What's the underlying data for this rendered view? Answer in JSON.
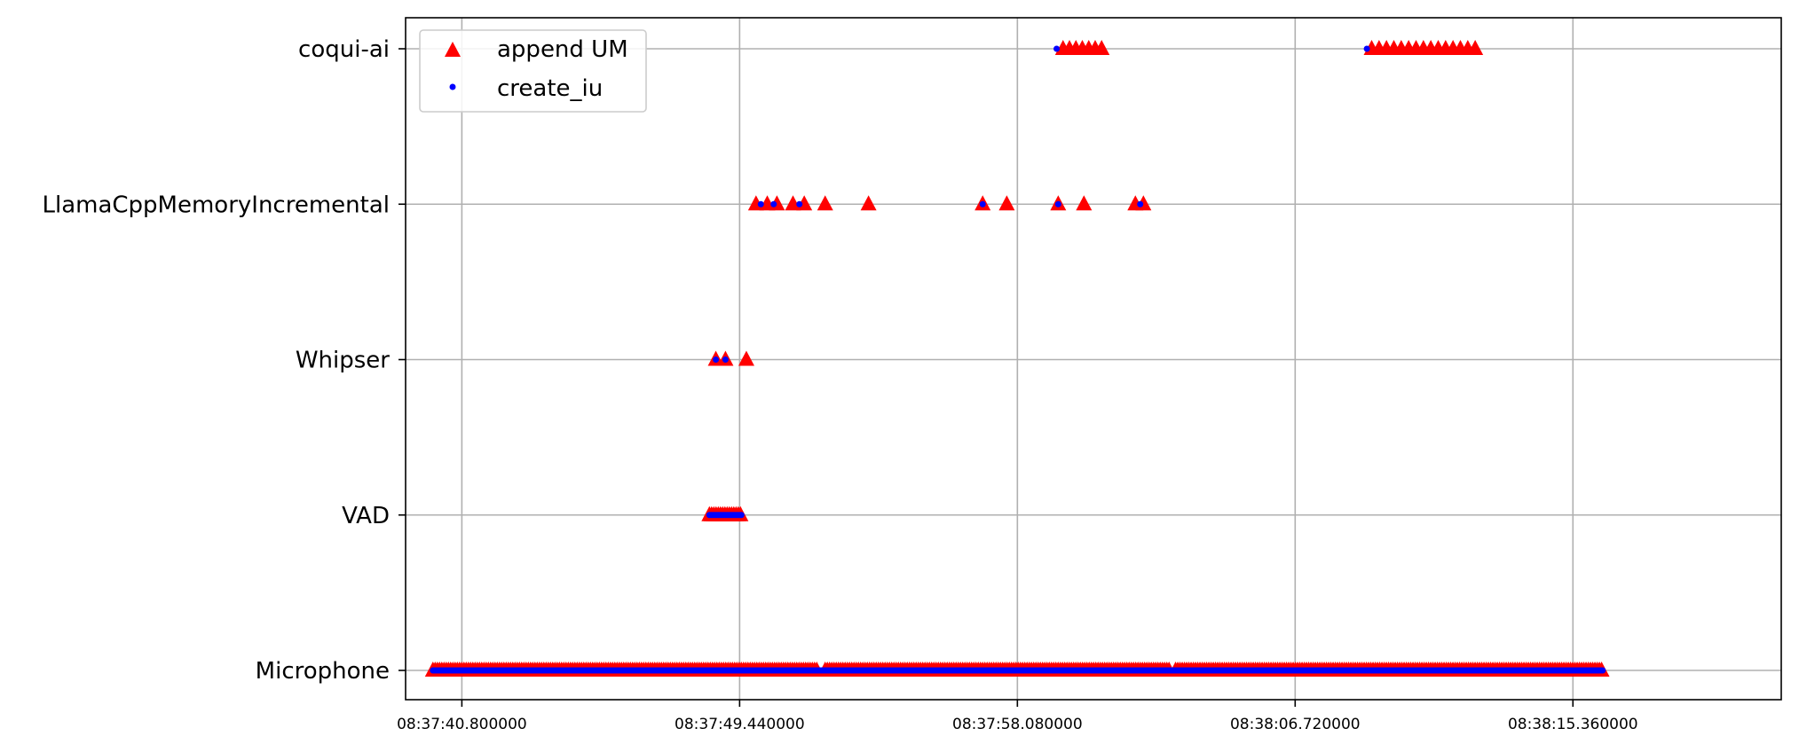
{
  "chart_data": {
    "type": "scatter",
    "title": "",
    "xlabel": "",
    "ylabel": "",
    "grid": true,
    "legend_position": "top-left",
    "x_axis": {
      "kind": "time",
      "min": "08:37:39.050",
      "max": "08:38:21.840",
      "ticks": [
        "08:37:40.800000",
        "08:37:49.440000",
        "08:37:58.080000",
        "08:38:06.720000",
        "08:38:15.360000"
      ]
    },
    "categories": [
      "Microphone",
      "VAD",
      "Whipser",
      "LlamaCppMemoryIncremental",
      "coqui-ai"
    ],
    "series": [
      {
        "name": "append UM",
        "marker": "triangle",
        "color": "#ff0000",
        "points": [
          {
            "category": "Microphone",
            "x_start": "08:37:39.90",
            "x_end": "08:37:51.90",
            "dense": true
          },
          {
            "category": "Microphone",
            "x_start": "08:37:52.10",
            "x_end": "08:38:02.80",
            "dense": true
          },
          {
            "category": "Microphone",
            "x_start": "08:38:03.00",
            "x_end": "08:38:16.30",
            "dense": true
          },
          {
            "category": "VAD",
            "x_start": "08:37:48.50",
            "x_end": "08:37:49.50",
            "dense": true
          },
          {
            "category": "Whipser",
            "x": [
              "08:37:48.70",
              "08:37:49.00",
              "08:37:49.65"
            ]
          },
          {
            "category": "LlamaCppMemoryIncremental",
            "x": [
              "08:37:49.95",
              "08:37:50.30",
              "08:37:50.60",
              "08:37:51.10",
              "08:37:51.45",
              "08:37:52.10",
              "08:37:53.45",
              "08:37:57.00",
              "08:37:57.75",
              "08:37:59.35",
              "08:38:00.15",
              "08:38:01.75",
              "08:38:02.00"
            ]
          },
          {
            "category": "coqui-ai",
            "x": [
              "08:37:59.50",
              "08:37:59.70",
              "08:37:59.90",
              "08:38:00.10",
              "08:38:00.30",
              "08:38:00.50",
              "08:38:00.70",
              "08:38:09.10",
              "08:38:09.33",
              "08:38:09.56",
              "08:38:09.79",
              "08:38:10.02",
              "08:38:10.25",
              "08:38:10.48",
              "08:38:10.71",
              "08:38:10.94",
              "08:38:11.17",
              "08:38:11.40",
              "08:38:11.63",
              "08:38:11.86",
              "08:38:12.09",
              "08:38:12.32"
            ]
          }
        ]
      },
      {
        "name": "create_iu",
        "marker": "dot",
        "color": "#0000ff",
        "points": [
          {
            "category": "Microphone",
            "x_start": "08:37:39.90",
            "x_end": "08:38:16.30",
            "dense": true
          },
          {
            "category": "VAD",
            "x_start": "08:37:48.50",
            "x_end": "08:37:49.50",
            "dense": true
          },
          {
            "category": "Whipser",
            "x": [
              "08:37:48.70",
              "08:37:49.00"
            ]
          },
          {
            "category": "LlamaCppMemoryIncremental",
            "x": [
              "08:37:50.10",
              "08:37:50.50",
              "08:37:51.30",
              "08:37:57.00",
              "08:37:59.35",
              "08:38:01.90"
            ]
          },
          {
            "category": "coqui-ai",
            "x": [
              "08:37:59.30",
              "08:38:08.95"
            ]
          }
        ]
      }
    ]
  }
}
